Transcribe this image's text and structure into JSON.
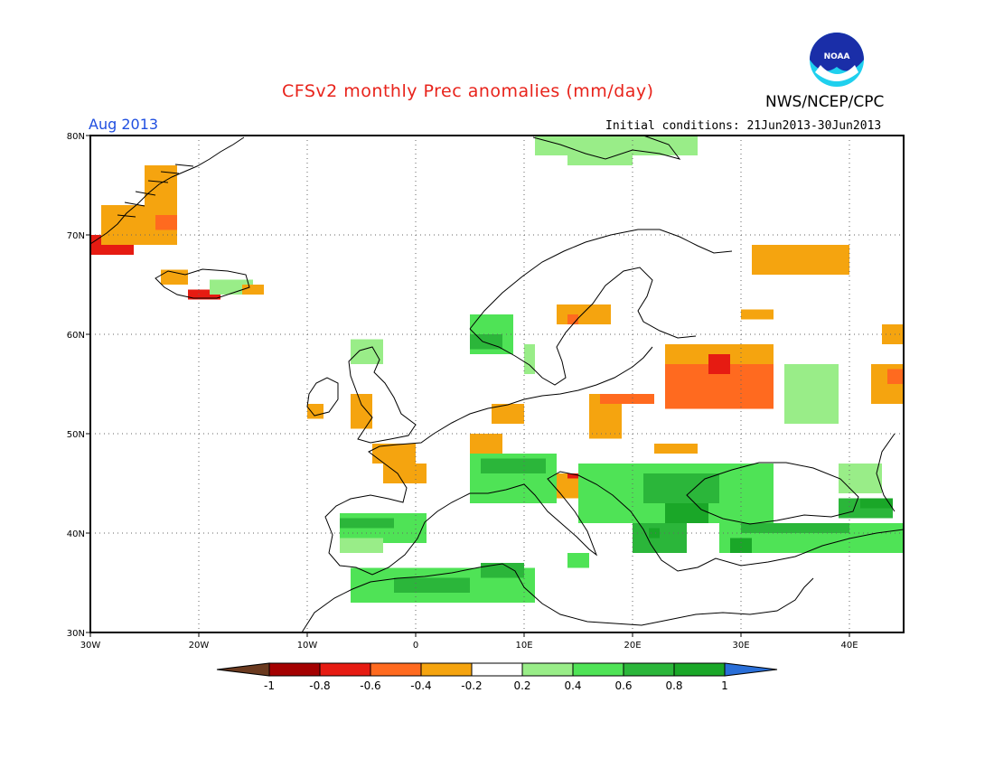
{
  "header": {
    "title": "CFSv2 monthly Prec anomalies (mm/day)",
    "agency": "NWS/NCEP/CPC",
    "month": "Aug 2013",
    "initial_conditions": "Initial conditions: 21Jun2013-30Jun2013",
    "logo_text": "NOAA"
  },
  "map": {
    "projection": "lat-lon",
    "lon_range": [
      -30,
      45
    ],
    "lat_range": [
      30,
      80
    ],
    "lat_ticks": [
      {
        "value": 30,
        "label": "30N"
      },
      {
        "value": 40,
        "label": "40N"
      },
      {
        "value": 50,
        "label": "50N"
      },
      {
        "value": 60,
        "label": "60N"
      },
      {
        "value": 70,
        "label": "70N"
      },
      {
        "value": 80,
        "label": "80N"
      }
    ],
    "lon_ticks": [
      {
        "value": -30,
        "label": "30W"
      },
      {
        "value": -20,
        "label": "20W"
      },
      {
        "value": -10,
        "label": "10W"
      },
      {
        "value": 0,
        "label": "0"
      },
      {
        "value": 10,
        "label": "10E"
      },
      {
        "value": 20,
        "label": "20E"
      },
      {
        "value": 30,
        "label": "30E"
      },
      {
        "value": 40,
        "label": "40E"
      }
    ],
    "anomaly_regions": [
      {
        "lon": [
          -30,
          -26
        ],
        "lat": [
          68,
          70
        ],
        "value": -0.8
      },
      {
        "lon": [
          -29,
          -22
        ],
        "lat": [
          69,
          73
        ],
        "value": -0.4
      },
      {
        "lon": [
          -25,
          -22
        ],
        "lat": [
          71,
          77
        ],
        "value": -0.4
      },
      {
        "lon": [
          -24,
          -22
        ],
        "lat": [
          70.5,
          72
        ],
        "value": -0.6
      },
      {
        "lon": [
          -23.5,
          -21
        ],
        "lat": [
          65,
          66.5
        ],
        "value": -0.4
      },
      {
        "lon": [
          -21,
          -18
        ],
        "lat": [
          63.5,
          64.5
        ],
        "value": -0.8
      },
      {
        "lon": [
          -19,
          -15
        ],
        "lat": [
          64,
          65.5
        ],
        "value": 0.3
      },
      {
        "lon": [
          -16,
          -14
        ],
        "lat": [
          64,
          65
        ],
        "value": -0.4
      },
      {
        "lon": [
          -10,
          -8.5
        ],
        "lat": [
          51.5,
          53
        ],
        "value": -0.4
      },
      {
        "lon": [
          -6,
          -4
        ],
        "lat": [
          50.5,
          54
        ],
        "value": -0.4
      },
      {
        "lon": [
          -6,
          -3
        ],
        "lat": [
          57,
          59.5
        ],
        "value": 0.3
      },
      {
        "lon": [
          -4,
          0
        ],
        "lat": [
          47,
          49
        ],
        "value": -0.4
      },
      {
        "lon": [
          -3,
          1
        ],
        "lat": [
          45,
          47
        ],
        "value": -0.4
      },
      {
        "lon": [
          5,
          8
        ],
        "lat": [
          47,
          50
        ],
        "value": -0.4
      },
      {
        "lon": [
          7,
          10
        ],
        "lat": [
          51,
          53
        ],
        "value": -0.4
      },
      {
        "lon": [
          12,
          20
        ],
        "lat": [
          43.5,
          46
        ],
        "value": -0.4
      },
      {
        "lon": [
          14,
          15
        ],
        "lat": [
          45.5,
          46
        ],
        "value": -0.8
      },
      {
        "lon": [
          16,
          19
        ],
        "lat": [
          49.5,
          54
        ],
        "value": -0.4
      },
      {
        "lon": [
          17,
          22
        ],
        "lat": [
          53,
          54
        ],
        "value": -0.6
      },
      {
        "lon": [
          23,
          33
        ],
        "lat": [
          52.5,
          58
        ],
        "value": -0.6
      },
      {
        "lon": [
          23,
          33
        ],
        "lat": [
          57,
          59
        ],
        "value": -0.4
      },
      {
        "lon": [
          27,
          29
        ],
        "lat": [
          56,
          58
        ],
        "value": -0.8
      },
      {
        "lon": [
          13,
          18
        ],
        "lat": [
          61,
          63
        ],
        "value": -0.4
      },
      {
        "lon": [
          14,
          15
        ],
        "lat": [
          61,
          62
        ],
        "value": -0.6
      },
      {
        "lon": [
          31,
          40
        ],
        "lat": [
          66,
          69
        ],
        "value": -0.4
      },
      {
        "lon": [
          30,
          33
        ],
        "lat": [
          61.5,
          62.5
        ],
        "value": -0.4
      },
      {
        "lon": [
          42,
          45
        ],
        "lat": [
          53,
          57
        ],
        "value": -0.4
      },
      {
        "lon": [
          43.5,
          45
        ],
        "lat": [
          55,
          56.5
        ],
        "value": -0.6
      },
      {
        "lon": [
          43,
          45
        ],
        "lat": [
          59,
          61
        ],
        "value": -0.4
      },
      {
        "lon": [
          22,
          26
        ],
        "lat": [
          48,
          49
        ],
        "value": -0.4
      },
      {
        "lon": [
          11,
          26
        ],
        "lat": [
          78,
          80
        ],
        "value": 0.3
      },
      {
        "lon": [
          14,
          20
        ],
        "lat": [
          77,
          78
        ],
        "value": 0.3
      },
      {
        "lon": [
          5,
          9
        ],
        "lat": [
          58,
          62
        ],
        "value": 0.4
      },
      {
        "lon": [
          5,
          8
        ],
        "lat": [
          58.5,
          60
        ],
        "value": 0.7
      },
      {
        "lon": [
          10,
          11
        ],
        "lat": [
          56,
          59
        ],
        "value": 0.3
      },
      {
        "lon": [
          34,
          39
        ],
        "lat": [
          51,
          57
        ],
        "value": 0.3
      },
      {
        "lon": [
          -7,
          1
        ],
        "lat": [
          39,
          42
        ],
        "value": 0.4
      },
      {
        "lon": [
          -7,
          -2
        ],
        "lat": [
          40.5,
          41.5
        ],
        "value": 0.7
      },
      {
        "lon": [
          -7,
          -3
        ],
        "lat": [
          38,
          39.5
        ],
        "value": 0.3
      },
      {
        "lon": [
          -6,
          11
        ],
        "lat": [
          33,
          36.5
        ],
        "value": 0.4
      },
      {
        "lon": [
          -2,
          5
        ],
        "lat": [
          34,
          35.5
        ],
        "value": 0.7
      },
      {
        "lon": [
          6,
          10
        ],
        "lat": [
          35.5,
          37
        ],
        "value": 0.7
      },
      {
        "lon": [
          5,
          13
        ],
        "lat": [
          43,
          48
        ],
        "value": 0.4
      },
      {
        "lon": [
          6,
          12
        ],
        "lat": [
          46,
          47.5
        ],
        "value": 0.7
      },
      {
        "lon": [
          15,
          33
        ],
        "lat": [
          41,
          47
        ],
        "value": 0.4
      },
      {
        "lon": [
          21,
          28
        ],
        "lat": [
          43,
          46
        ],
        "value": 0.7
      },
      {
        "lon": [
          23,
          27
        ],
        "lat": [
          41,
          43
        ],
        "value": 0.9
      },
      {
        "lon": [
          20,
          25
        ],
        "lat": [
          38,
          41
        ],
        "value": 0.7
      },
      {
        "lon": [
          21.5,
          22.5
        ],
        "lat": [
          39.5,
          40.5
        ],
        "value": 0.9
      },
      {
        "lon": [
          28,
          45
        ],
        "lat": [
          38,
          41
        ],
        "value": 0.4
      },
      {
        "lon": [
          30,
          40
        ],
        "lat": [
          40,
          41
        ],
        "value": 0.7
      },
      {
        "lon": [
          29,
          31
        ],
        "lat": [
          38,
          39.5
        ],
        "value": 0.9
      },
      {
        "lon": [
          39,
          44
        ],
        "lat": [
          41.5,
          43.5
        ],
        "value": 0.7
      },
      {
        "lon": [
          41,
          44
        ],
        "lat": [
          42.5,
          43.5
        ],
        "value": 0.9
      },
      {
        "lon": [
          14,
          16
        ],
        "lat": [
          36.5,
          38
        ],
        "value": 0.4
      },
      {
        "lon": [
          39,
          43
        ],
        "lat": [
          44,
          47
        ],
        "value": 0.3
      }
    ]
  },
  "colorbar": {
    "labels": [
      "-1",
      "-0.8",
      "-0.6",
      "-0.4",
      "-0.2",
      "0.2",
      "0.4",
      "0.6",
      "0.8",
      "1"
    ],
    "colors": [
      "#6b3a1f",
      "#a40000",
      "#e61b12",
      "#ff6a1f",
      "#f5a40f",
      "#ffffff",
      "#99ed88",
      "#4fe356",
      "#2bb63a",
      "#1aa728",
      "#2a6fd8"
    ],
    "breaks": [
      -1,
      -0.8,
      -0.6,
      -0.4,
      -0.2,
      0.2,
      0.4,
      0.6,
      0.8,
      1
    ]
  }
}
